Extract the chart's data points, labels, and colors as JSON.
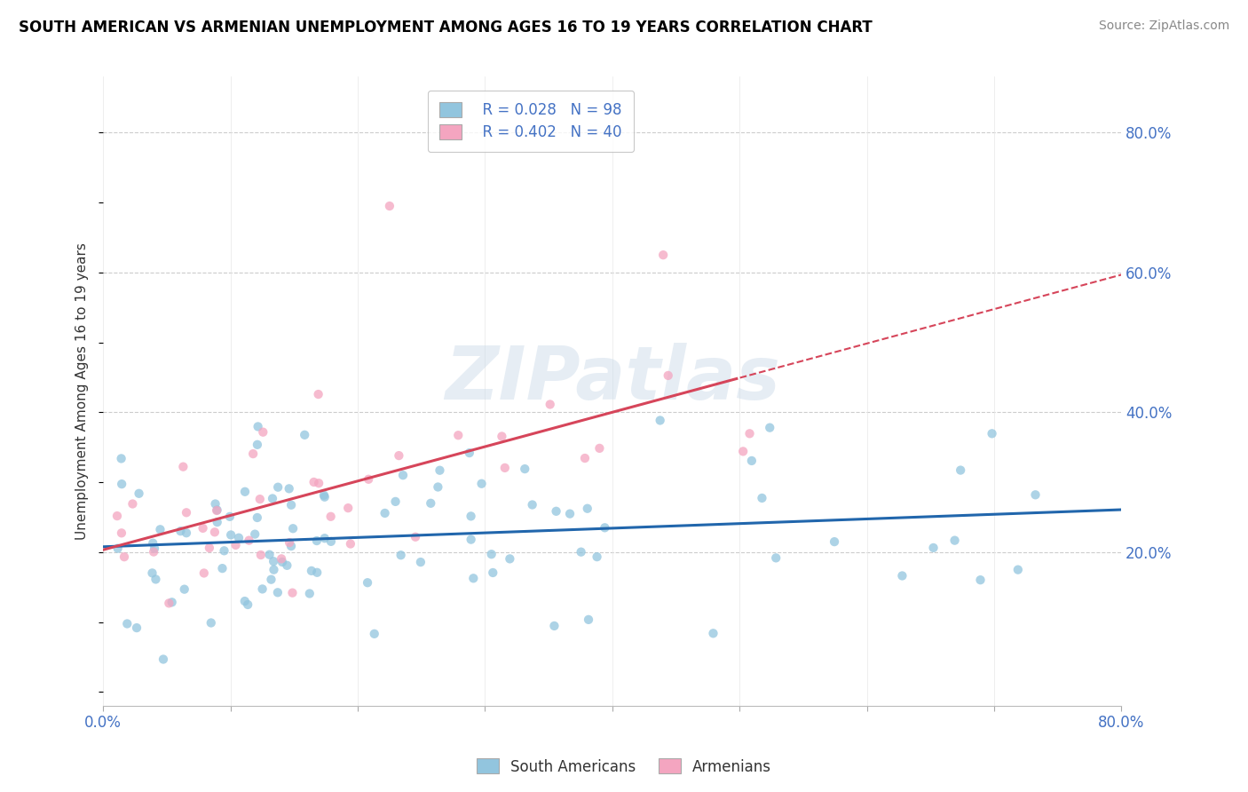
{
  "title": "SOUTH AMERICAN VS ARMENIAN UNEMPLOYMENT AMONG AGES 16 TO 19 YEARS CORRELATION CHART",
  "source": "Source: ZipAtlas.com",
  "ylabel": "Unemployment Among Ages 16 to 19 years",
  "xlim": [
    0.0,
    0.8
  ],
  "ylim": [
    -0.02,
    0.88
  ],
  "plot_ylim": [
    -0.02,
    0.88
  ],
  "xtick_positions": [
    0.0,
    0.1,
    0.2,
    0.3,
    0.4,
    0.5,
    0.6,
    0.7,
    0.8
  ],
  "xticklabels": [
    "0.0%",
    "",
    "",
    "",
    "",
    "",
    "",
    "",
    "80.0%"
  ],
  "ytick_positions": [
    0.2,
    0.4,
    0.6,
    0.8
  ],
  "yticklabels": [
    "20.0%",
    "40.0%",
    "60.0%",
    "80.0%"
  ],
  "south_american_color": "#92c5de",
  "armenian_color": "#f4a5c0",
  "blue_line_color": "#2166ac",
  "pink_line_color": "#d6455a",
  "legend_r1": "R = 0.028",
  "legend_n1": "N = 98",
  "legend_r2": "R = 0.402",
  "legend_n2": "N = 40",
  "watermark_text": "ZIPatlas",
  "sa_seed": 12345,
  "arm_seed": 99
}
